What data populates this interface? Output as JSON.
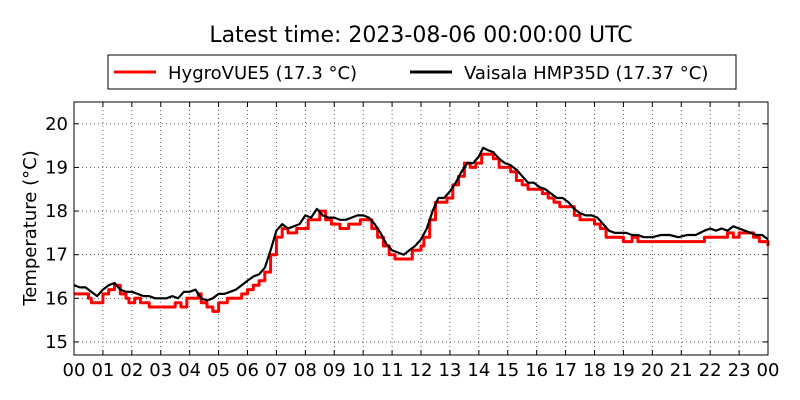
{
  "chart_data": {
    "type": "line",
    "title": "Latest time: 2023-08-06 00:00:00 UTC",
    "xlabel": "",
    "ylabel": "Temperature (°C)",
    "xlim": [
      0,
      24
    ],
    "ylim": [
      14.7,
      20.5
    ],
    "x_ticks": [
      0,
      1,
      2,
      3,
      4,
      5,
      6,
      7,
      8,
      9,
      10,
      11,
      12,
      13,
      14,
      15,
      16,
      17,
      18,
      19,
      20,
      21,
      22,
      23,
      24
    ],
    "x_tick_labels": [
      "00",
      "01",
      "02",
      "03",
      "04",
      "05",
      "06",
      "07",
      "08",
      "09",
      "10",
      "11",
      "12",
      "13",
      "14",
      "15",
      "16",
      "17",
      "18",
      "19",
      "20",
      "21",
      "22",
      "23",
      "00"
    ],
    "y_ticks": [
      15,
      16,
      17,
      18,
      19,
      20
    ],
    "y_tick_labels": [
      "15",
      "16",
      "17",
      "18",
      "19",
      "20"
    ],
    "grid": true,
    "legend_position": "top-center",
    "series": [
      {
        "name": "HygroVUE5 (17.3 °C)",
        "color": "#ff0000",
        "step": true,
        "points": [
          [
            0.0,
            16.1
          ],
          [
            0.3,
            16.1
          ],
          [
            0.5,
            16.0
          ],
          [
            0.6,
            15.9
          ],
          [
            0.9,
            15.9
          ],
          [
            1.0,
            16.1
          ],
          [
            1.2,
            16.2
          ],
          [
            1.4,
            16.3
          ],
          [
            1.6,
            16.1
          ],
          [
            1.8,
            16.0
          ],
          [
            1.9,
            15.9
          ],
          [
            2.1,
            16.0
          ],
          [
            2.3,
            15.9
          ],
          [
            2.5,
            15.9
          ],
          [
            2.6,
            15.8
          ],
          [
            2.9,
            15.8
          ],
          [
            3.0,
            15.8
          ],
          [
            3.3,
            15.8
          ],
          [
            3.5,
            15.9
          ],
          [
            3.7,
            15.8
          ],
          [
            3.9,
            16.0
          ],
          [
            4.0,
            16.0
          ],
          [
            4.3,
            16.1
          ],
          [
            4.4,
            15.9
          ],
          [
            4.6,
            15.8
          ],
          [
            4.8,
            15.7
          ],
          [
            5.0,
            15.9
          ],
          [
            5.3,
            16.0
          ],
          [
            5.6,
            16.0
          ],
          [
            5.8,
            16.1
          ],
          [
            6.0,
            16.2
          ],
          [
            6.2,
            16.3
          ],
          [
            6.4,
            16.4
          ],
          [
            6.6,
            16.6
          ],
          [
            6.8,
            17.0
          ],
          [
            7.0,
            17.4
          ],
          [
            7.2,
            17.6
          ],
          [
            7.4,
            17.5
          ],
          [
            7.7,
            17.6
          ],
          [
            7.9,
            17.6
          ],
          [
            8.1,
            17.8
          ],
          [
            8.3,
            17.8
          ],
          [
            8.5,
            18.0
          ],
          [
            8.7,
            17.8
          ],
          [
            8.9,
            17.7
          ],
          [
            9.2,
            17.6
          ],
          [
            9.5,
            17.7
          ],
          [
            9.7,
            17.7
          ],
          [
            9.9,
            17.8
          ],
          [
            10.0,
            17.8
          ],
          [
            10.3,
            17.6
          ],
          [
            10.5,
            17.4
          ],
          [
            10.7,
            17.2
          ],
          [
            10.9,
            17.0
          ],
          [
            11.1,
            16.9
          ],
          [
            11.4,
            16.9
          ],
          [
            11.6,
            16.9
          ],
          [
            11.7,
            17.1
          ],
          [
            12.0,
            17.2
          ],
          [
            12.1,
            17.4
          ],
          [
            12.3,
            17.8
          ],
          [
            12.5,
            18.2
          ],
          [
            12.7,
            18.2
          ],
          [
            12.9,
            18.3
          ],
          [
            13.1,
            18.6
          ],
          [
            13.3,
            18.8
          ],
          [
            13.5,
            19.1
          ],
          [
            13.7,
            19.0
          ],
          [
            13.9,
            19.1
          ],
          [
            14.1,
            19.3
          ],
          [
            14.3,
            19.3
          ],
          [
            14.5,
            19.2
          ],
          [
            14.7,
            19.0
          ],
          [
            14.9,
            19.0
          ],
          [
            15.1,
            18.9
          ],
          [
            15.3,
            18.7
          ],
          [
            15.5,
            18.6
          ],
          [
            15.7,
            18.5
          ],
          [
            16.0,
            18.5
          ],
          [
            16.2,
            18.4
          ],
          [
            16.4,
            18.3
          ],
          [
            16.6,
            18.2
          ],
          [
            16.8,
            18.1
          ],
          [
            17.0,
            18.1
          ],
          [
            17.3,
            17.9
          ],
          [
            17.5,
            17.8
          ],
          [
            17.8,
            17.8
          ],
          [
            18.0,
            17.7
          ],
          [
            18.2,
            17.6
          ],
          [
            18.4,
            17.4
          ],
          [
            18.6,
            17.4
          ],
          [
            18.9,
            17.4
          ],
          [
            19.0,
            17.3
          ],
          [
            19.3,
            17.4
          ],
          [
            19.5,
            17.3
          ],
          [
            19.8,
            17.3
          ],
          [
            20.0,
            17.3
          ],
          [
            20.4,
            17.3
          ],
          [
            20.8,
            17.3
          ],
          [
            21.2,
            17.3
          ],
          [
            21.6,
            17.3
          ],
          [
            21.8,
            17.4
          ],
          [
            22.1,
            17.4
          ],
          [
            22.4,
            17.4
          ],
          [
            22.6,
            17.5
          ],
          [
            22.8,
            17.4
          ],
          [
            23.0,
            17.5
          ],
          [
            23.2,
            17.5
          ],
          [
            23.5,
            17.4
          ],
          [
            23.7,
            17.3
          ],
          [
            24.0,
            17.2
          ]
        ]
      },
      {
        "name": "Vaisala HMP35D (17.37 °C)",
        "color": "#000000",
        "step": false,
        "points": [
          [
            0.0,
            16.3
          ],
          [
            0.2,
            16.25
          ],
          [
            0.4,
            16.25
          ],
          [
            0.6,
            16.15
          ],
          [
            0.8,
            16.05
          ],
          [
            1.0,
            16.2
          ],
          [
            1.2,
            16.3
          ],
          [
            1.4,
            16.35
          ],
          [
            1.6,
            16.2
          ],
          [
            1.8,
            16.15
          ],
          [
            2.0,
            16.15
          ],
          [
            2.2,
            16.1
          ],
          [
            2.4,
            16.05
          ],
          [
            2.6,
            16.05
          ],
          [
            2.8,
            16.0
          ],
          [
            3.0,
            16.0
          ],
          [
            3.2,
            16.0
          ],
          [
            3.4,
            16.05
          ],
          [
            3.6,
            16.0
          ],
          [
            3.8,
            16.15
          ],
          [
            4.0,
            16.15
          ],
          [
            4.2,
            16.2
          ],
          [
            4.4,
            16.0
          ],
          [
            4.6,
            15.95
          ],
          [
            4.8,
            16.0
          ],
          [
            5.0,
            16.1
          ],
          [
            5.2,
            16.1
          ],
          [
            5.4,
            16.15
          ],
          [
            5.6,
            16.2
          ],
          [
            5.8,
            16.3
          ],
          [
            6.0,
            16.4
          ],
          [
            6.2,
            16.5
          ],
          [
            6.4,
            16.55
          ],
          [
            6.6,
            16.7
          ],
          [
            6.8,
            17.1
          ],
          [
            7.0,
            17.55
          ],
          [
            7.2,
            17.7
          ],
          [
            7.4,
            17.6
          ],
          [
            7.6,
            17.65
          ],
          [
            7.8,
            17.7
          ],
          [
            8.0,
            17.9
          ],
          [
            8.2,
            17.85
          ],
          [
            8.4,
            18.05
          ],
          [
            8.6,
            17.9
          ],
          [
            8.8,
            17.85
          ],
          [
            9.0,
            17.85
          ],
          [
            9.2,
            17.8
          ],
          [
            9.4,
            17.8
          ],
          [
            9.6,
            17.85
          ],
          [
            9.8,
            17.9
          ],
          [
            10.0,
            17.9
          ],
          [
            10.2,
            17.85
          ],
          [
            10.4,
            17.7
          ],
          [
            10.6,
            17.5
          ],
          [
            10.8,
            17.25
          ],
          [
            11.0,
            17.1
          ],
          [
            11.2,
            17.05
          ],
          [
            11.4,
            17.0
          ],
          [
            11.6,
            17.1
          ],
          [
            11.8,
            17.2
          ],
          [
            12.0,
            17.35
          ],
          [
            12.2,
            17.6
          ],
          [
            12.4,
            18.0
          ],
          [
            12.6,
            18.3
          ],
          [
            12.8,
            18.3
          ],
          [
            13.0,
            18.45
          ],
          [
            13.2,
            18.65
          ],
          [
            13.4,
            18.9
          ],
          [
            13.6,
            19.1
          ],
          [
            13.8,
            19.1
          ],
          [
            14.0,
            19.25
          ],
          [
            14.15,
            19.45
          ],
          [
            14.3,
            19.4
          ],
          [
            14.5,
            19.35
          ],
          [
            14.7,
            19.2
          ],
          [
            14.9,
            19.1
          ],
          [
            15.1,
            19.05
          ],
          [
            15.3,
            18.95
          ],
          [
            15.5,
            18.8
          ],
          [
            15.7,
            18.65
          ],
          [
            15.9,
            18.65
          ],
          [
            16.1,
            18.55
          ],
          [
            16.3,
            18.5
          ],
          [
            16.5,
            18.4
          ],
          [
            16.7,
            18.3
          ],
          [
            16.9,
            18.3
          ],
          [
            17.1,
            18.2
          ],
          [
            17.3,
            18.05
          ],
          [
            17.5,
            17.95
          ],
          [
            17.7,
            17.9
          ],
          [
            17.9,
            17.9
          ],
          [
            18.1,
            17.85
          ],
          [
            18.3,
            17.7
          ],
          [
            18.5,
            17.55
          ],
          [
            18.7,
            17.5
          ],
          [
            18.9,
            17.5
          ],
          [
            19.1,
            17.5
          ],
          [
            19.3,
            17.45
          ],
          [
            19.5,
            17.45
          ],
          [
            19.7,
            17.4
          ],
          [
            20.0,
            17.4
          ],
          [
            20.3,
            17.45
          ],
          [
            20.6,
            17.45
          ],
          [
            20.9,
            17.4
          ],
          [
            21.2,
            17.45
          ],
          [
            21.5,
            17.45
          ],
          [
            21.8,
            17.55
          ],
          [
            22.0,
            17.6
          ],
          [
            22.2,
            17.55
          ],
          [
            22.4,
            17.6
          ],
          [
            22.6,
            17.55
          ],
          [
            22.8,
            17.65
          ],
          [
            23.0,
            17.6
          ],
          [
            23.2,
            17.55
          ],
          [
            23.4,
            17.5
          ],
          [
            23.6,
            17.45
          ],
          [
            23.8,
            17.45
          ],
          [
            24.0,
            17.35
          ]
        ]
      }
    ]
  }
}
